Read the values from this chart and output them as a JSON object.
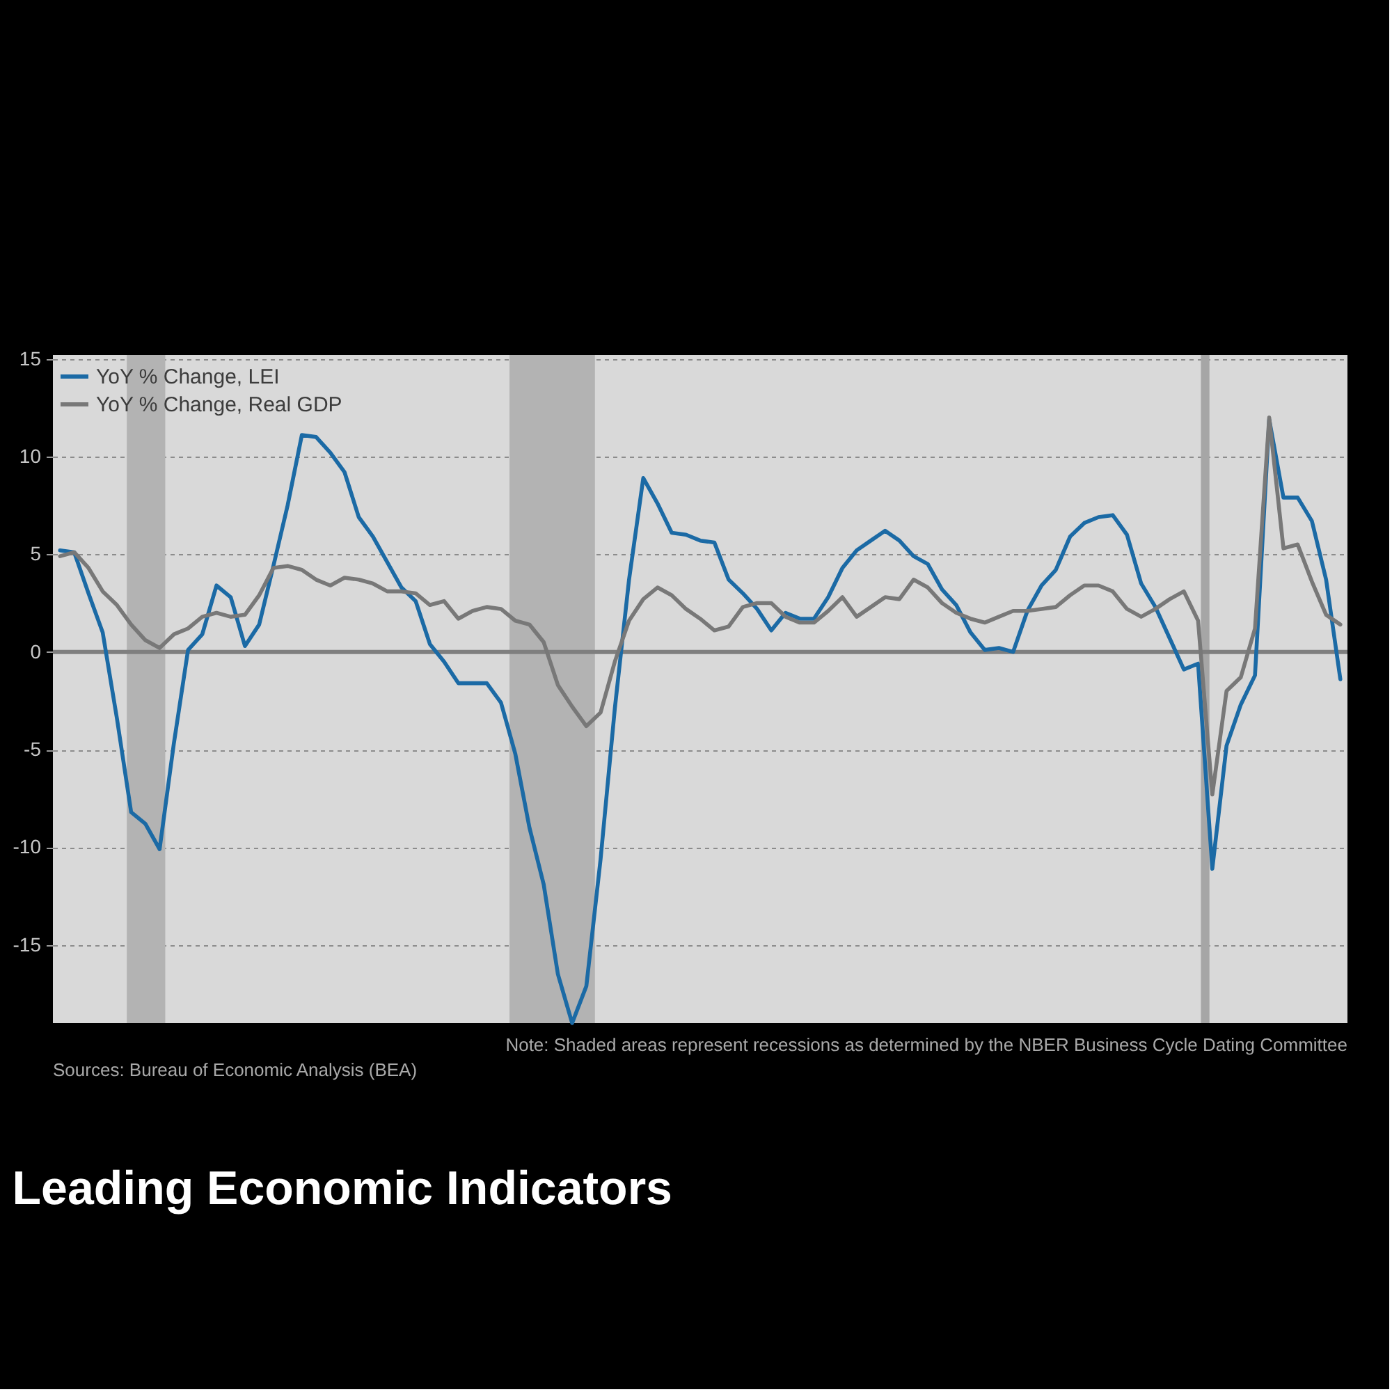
{
  "chart_data": {
    "type": "line",
    "title": "Leading Economic Indicators",
    "categories": [
      null,
      null,
      null,
      null,
      null,
      null,
      null,
      null,
      null,
      null,
      null,
      null,
      null,
      null,
      null,
      null,
      null,
      null,
      null,
      null,
      null,
      null,
      null,
      null,
      null,
      null,
      null,
      null,
      null,
      null,
      null,
      null,
      null,
      null,
      null,
      null,
      null,
      null,
      null,
      null,
      null,
      null,
      null,
      null,
      null,
      null,
      null,
      null,
      null,
      null,
      null,
      null,
      null,
      null,
      null,
      null,
      null,
      null,
      null,
      null,
      null,
      null,
      null,
      null,
      null,
      null,
      null,
      null,
      null,
      null,
      null,
      null,
      null,
      null,
      null,
      null,
      null,
      null,
      null,
      null,
      null,
      null,
      null,
      null,
      null,
      null,
      null,
      null,
      null,
      null,
      null
    ],
    "series": [
      {
        "name": "YoY % Change, LEI",
        "color": "#1b6aa5",
        "values": [
          5.2,
          5.1,
          3.0,
          1.0,
          -3.4,
          -8.2,
          -8.8,
          -10.1,
          -4.7,
          0.1,
          0.9,
          3.4,
          2.8,
          0.3,
          1.4,
          4.4,
          7.5,
          11.1,
          11.0,
          10.2,
          9.2,
          6.9,
          5.9,
          4.6,
          3.3,
          2.6,
          0.4,
          -0.5,
          -1.6,
          -1.6,
          -1.6,
          -2.6,
          -5.2,
          -9.0,
          -11.9,
          -16.5,
          -19,
          -17.1,
          -10.6,
          -2.9,
          3.7,
          8.9,
          7.6,
          6.1,
          6.0,
          5.7,
          5.6,
          3.7,
          3.0,
          2.2,
          1.1,
          2.0,
          1.7,
          1.7,
          2.8,
          4.3,
          5.2,
          5.7,
          6.2,
          5.7,
          4.9,
          4.5,
          3.2,
          2.4,
          1.0,
          0.1,
          0.2,
          0.0,
          2.1,
          3.4,
          4.2,
          5.9,
          6.6,
          6.9,
          7.0,
          6.0,
          3.5,
          2.3,
          0.7,
          -0.9,
          -0.6,
          -11.1,
          -4.8,
          -2.7,
          -1.2,
          11.9,
          7.9,
          7.9,
          6.7,
          3.7,
          -1.4
        ]
      },
      {
        "name": "YoY % Change, Real GDP",
        "color": "#787878",
        "values": [
          4.9,
          5.1,
          4.3,
          3.1,
          2.4,
          1.4,
          0.6,
          0.2,
          0.9,
          1.2,
          1.8,
          2.0,
          1.8,
          1.9,
          2.9,
          4.3,
          4.4,
          4.2,
          3.7,
          3.4,
          3.8,
          3.7,
          3.5,
          3.1,
          3.1,
          3.0,
          2.4,
          2.6,
          1.7,
          2.1,
          2.3,
          2.2,
          1.6,
          1.4,
          0.5,
          -1.7,
          -2.8,
          -3.8,
          -3.1,
          -0.5,
          1.6,
          2.7,
          3.3,
          2.9,
          2.2,
          1.7,
          1.1,
          1.3,
          2.3,
          2.5,
          2.5,
          1.8,
          1.5,
          1.5,
          2.1,
          2.8,
          1.8,
          2.3,
          2.8,
          2.7,
          3.7,
          3.3,
          2.5,
          2.0,
          1.7,
          1.5,
          1.8,
          2.1,
          2.1,
          2.2,
          2.3,
          2.9,
          3.4,
          3.4,
          3.1,
          2.2,
          1.8,
          2.2,
          2.7,
          3.1,
          1.6,
          -7.3,
          -2.0,
          -1.3,
          1.2,
          12.0,
          5.3,
          5.5,
          3.6,
          1.9,
          1.4
        ]
      }
    ],
    "ylim": [
      -19,
      15.2
    ],
    "yticks": [
      -15,
      -10,
      -5,
      0,
      5,
      10,
      15
    ],
    "grid": "y",
    "legend": "top left",
    "tick_labels": "y",
    "line_style": "solid",
    "ref_lines": [
      {
        "axis": "y",
        "value": 0,
        "color": "#7f7f7f"
      }
    ],
    "annotations": [
      "Note: Shaded areas represent recessions as determined by the NBER Business Cycle Dating Committee",
      "Sources: Bureau of Economic Analysis (BEA)"
    ]
  }
}
